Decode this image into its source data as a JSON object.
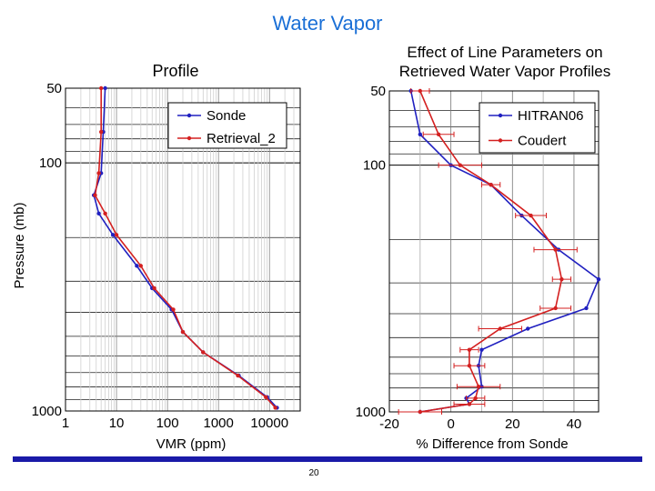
{
  "slide": {
    "title": "Water Vapor",
    "page_number": "20"
  },
  "colors": {
    "title": "#1a6fd6",
    "sonde": "#2020c0",
    "retrieval": "#d42020",
    "footer": "#1a1aa8"
  },
  "chart_data": [
    {
      "type": "line",
      "title": "Profile",
      "xlabel": "VMR (ppm)",
      "ylabel": "Pressure (mb)",
      "xscale": "log",
      "yscale": "log",
      "xlim": [
        1,
        40000
      ],
      "ylim": [
        50,
        1000
      ],
      "y_inverted": true,
      "x_tick_labels": [
        "1",
        "10",
        "100",
        "1000",
        "10000"
      ],
      "x_tick_values": [
        1,
        10,
        100,
        1000,
        10000
      ],
      "y_tick_labels": [
        "50",
        "100",
        "1000"
      ],
      "y_tick_values": [
        50,
        100,
        1000
      ],
      "legend": "top-right",
      "series": [
        {
          "name": "Sonde",
          "color": "#2020c0",
          "x": [
            6,
            5.5,
            5,
            3.6,
            4.5,
            8.5,
            25,
            50,
            120,
            200,
            500,
            2500,
            9000,
            14000
          ],
          "y": [
            50,
            75,
            110,
            135,
            160,
            195,
            260,
            320,
            390,
            480,
            580,
            720,
            880,
            970
          ]
        },
        {
          "name": "Retrieval_2",
          "color": "#d42020",
          "x": [
            5,
            5,
            4.5,
            3.8,
            6,
            10,
            30,
            55,
            130,
            200,
            500,
            2400,
            8500,
            13000
          ],
          "y": [
            50,
            75,
            110,
            135,
            160,
            195,
            260,
            320,
            390,
            480,
            580,
            720,
            880,
            970
          ]
        }
      ]
    },
    {
      "type": "line",
      "title": "Effect of Line Parameters on\nRetrieved Water Vapor Profiles",
      "title_lines": [
        "Effect of Line Parameters on",
        "Retrieved Water Vapor Profiles"
      ],
      "xlabel": "% Difference from Sonde",
      "ylabel": "",
      "xscale": "linear",
      "yscale": "log",
      "xlim": [
        -20,
        48
      ],
      "ylim": [
        50,
        1000
      ],
      "y_inverted": true,
      "x_tick_labels": [
        "-20",
        "0",
        "20",
        "40"
      ],
      "x_tick_values": [
        -20,
        0,
        20,
        40
      ],
      "y_tick_labels": [
        "50",
        "100",
        "1000"
      ],
      "y_tick_values": [
        50,
        100,
        1000
      ],
      "legend": "top-right",
      "series": [
        {
          "name": "HITRAN06",
          "color": "#2020c0",
          "x": [
            -13,
            -10,
            0,
            13,
            23,
            35,
            48,
            44,
            25,
            10,
            9,
            10,
            5,
            6,
            -10
          ],
          "y": [
            50,
            75,
            100,
            120,
            160,
            220,
            290,
            380,
            460,
            560,
            650,
            790,
            880,
            930,
            1000
          ]
        },
        {
          "name": "Coudert",
          "color": "#d42020",
          "x": [
            -10,
            -4,
            3,
            13,
            26,
            34,
            36,
            34,
            16,
            6,
            6,
            9,
            8,
            6,
            -10
          ],
          "y": [
            50,
            75,
            100,
            120,
            160,
            220,
            290,
            380,
            460,
            560,
            650,
            790,
            880,
            930,
            1000
          ]
        }
      ]
    }
  ]
}
